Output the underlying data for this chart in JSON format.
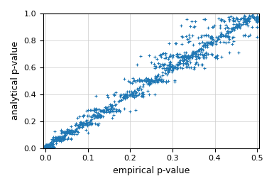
{
  "xlabel": "empirical p-value",
  "ylabel": "analytical p-value",
  "xlim": [
    -0.005,
    0.505
  ],
  "ylim": [
    0.0,
    1.0
  ],
  "xticks": [
    0.0,
    0.1,
    0.2,
    0.3,
    0.4,
    0.5
  ],
  "yticks": [
    0.0,
    0.2,
    0.4,
    0.6,
    0.8,
    1.0
  ],
  "color": "#1f77b4",
  "marker": "+",
  "markersize": 3,
  "markeredgewidth": 0.8,
  "grid": true,
  "seed": 12345,
  "background_color": "#ffffff",
  "grid_color": "#cccccc",
  "xlabel_fontsize": 9,
  "ylabel_fontsize": 9,
  "tick_fontsize": 8,
  "figsize": [
    3.86,
    2.62
  ],
  "dpi": 100,
  "n_groups": 12,
  "n_per_group": 35
}
